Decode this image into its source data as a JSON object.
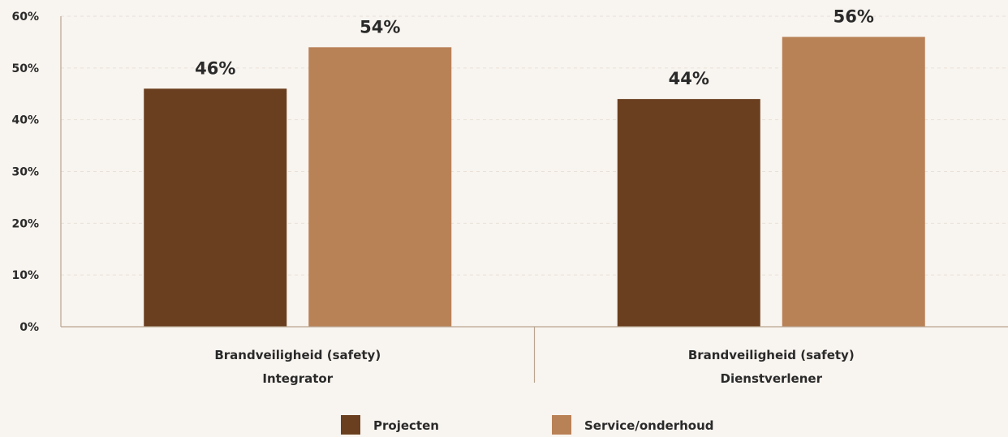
{
  "colors": {
    "background": "#f8f4ef",
    "projecten": "#6a3f1f",
    "service": "#b98156",
    "axis": "#b8a48f",
    "grid": "#e9e1d8"
  },
  "chart_data": {
    "type": "bar",
    "categories": [
      [
        "Brandveiligheid (safety)",
        "Integrator"
      ],
      [
        "Brandveiligheid (safety)",
        "Dienstverlener"
      ]
    ],
    "series": [
      {
        "name": "Projecten",
        "values": [
          46,
          44
        ],
        "labels": [
          "46%",
          "44%"
        ],
        "color": "#6a3f1f"
      },
      {
        "name": "Service/onderhoud",
        "values": [
          54,
          56
        ],
        "labels": [
          "54%",
          "56%"
        ],
        "color": "#b98156"
      }
    ],
    "ylim": [
      0,
      60
    ],
    "yticks": [
      "0%",
      "10%",
      "20%",
      "30%",
      "40%",
      "50%",
      "60%"
    ],
    "grid": true,
    "legend": "bottom-center"
  }
}
